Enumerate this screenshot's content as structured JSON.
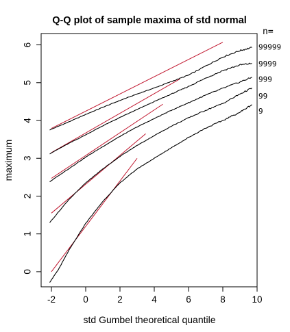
{
  "chart_data": {
    "type": "line",
    "title": "Q-Q plot of sample maxima of std normal",
    "xlabel": "std Gumbel theoretical quantile",
    "ylabel": "maximum",
    "xlim": [
      -2.6,
      10.0
    ],
    "ylim": [
      -0.4,
      6.3
    ],
    "xticks": [
      "-2",
      "0",
      "2",
      "4",
      "6",
      "8",
      "10"
    ],
    "yticks": [
      "0",
      "1",
      "2",
      "3",
      "4",
      "5",
      "6"
    ],
    "legend_title": "n=",
    "grid": false,
    "series": [
      {
        "name": "99999",
        "label_y": 5.95,
        "color": "#000000",
        "curve": {
          "x": [
            -2.1,
            -1.0,
            0.0,
            1.0,
            2.0,
            3.0,
            4.0,
            5.0,
            6.0,
            7.0,
            8.0,
            9.0,
            9.7
          ],
          "y": [
            3.75,
            3.96,
            4.16,
            4.35,
            4.53,
            4.7,
            4.86,
            5.03,
            5.2,
            5.44,
            5.68,
            5.85,
            5.93
          ]
        },
        "fit": {
          "x": [
            -2.0,
            8.0
          ],
          "y": [
            3.79,
            6.07
          ]
        }
      },
      {
        "name": "9999",
        "label_y": 5.5,
        "color": "#000000",
        "curve": {
          "x": [
            -2.1,
            -1.0,
            0.0,
            1.0,
            2.0,
            3.0,
            4.0,
            5.0,
            6.0,
            7.0,
            8.0,
            9.0,
            9.7
          ],
          "y": [
            3.12,
            3.39,
            3.62,
            3.86,
            4.08,
            4.29,
            4.5,
            4.7,
            4.9,
            5.12,
            5.32,
            5.47,
            5.51
          ]
        },
        "fit": {
          "x": [
            -2.0,
            5.5
          ],
          "y": [
            3.15,
            5.1
          ]
        }
      },
      {
        "name": "999",
        "label_y": 5.1,
        "color": "#000000",
        "curve": {
          "x": [
            -2.1,
            -1.0,
            0.0,
            1.0,
            2.0,
            3.0,
            4.0,
            5.0,
            6.0,
            7.0,
            8.0,
            9.0,
            9.7
          ],
          "y": [
            2.38,
            2.72,
            3.03,
            3.31,
            3.58,
            3.83,
            4.05,
            4.27,
            4.47,
            4.67,
            4.85,
            5.02,
            5.14
          ]
        },
        "fit": {
          "x": [
            -2.0,
            4.5
          ],
          "y": [
            2.47,
            4.43
          ]
        }
      },
      {
        "name": "99",
        "label_y": 4.65,
        "color": "#000000",
        "curve": {
          "x": [
            -2.1,
            -1.0,
            0.0,
            1.0,
            2.0,
            3.0,
            4.0,
            5.0,
            6.0,
            7.0,
            8.0,
            9.0,
            9.7
          ],
          "y": [
            1.3,
            1.9,
            2.35,
            2.72,
            3.05,
            3.34,
            3.6,
            3.85,
            4.07,
            4.27,
            4.45,
            4.7,
            4.86
          ]
        },
        "fit": {
          "x": [
            -2.0,
            3.5
          ],
          "y": [
            1.55,
            3.65
          ]
        }
      },
      {
        "name": "9",
        "label_y": 4.25,
        "color": "#000000",
        "curve": {
          "x": [
            -2.1,
            -1.6,
            -1.0,
            0.0,
            1.0,
            2.0,
            3.0,
            4.0,
            5.0,
            6.0,
            7.0,
            8.0,
            9.0,
            9.7
          ],
          "y": [
            -0.28,
            0.05,
            0.55,
            1.28,
            1.86,
            2.35,
            2.72,
            3.0,
            3.28,
            3.55,
            3.8,
            4.0,
            4.22,
            4.42
          ]
        },
        "fit": {
          "x": [
            -2.0,
            3.0
          ],
          "y": [
            0.0,
            3.0
          ]
        }
      }
    ],
    "fit_color": "#c0162e"
  }
}
